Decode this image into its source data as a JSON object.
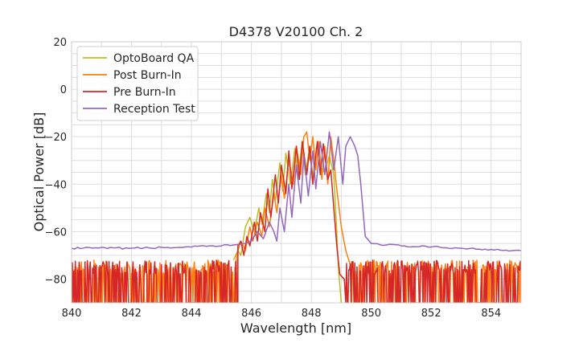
{
  "chart_data": {
    "type": "line",
    "title": "D4378 V20100 Ch. 2",
    "xlabel": "Wavelength [nm]",
    "ylabel": "Optical Power [dB]",
    "xlim": [
      840,
      855
    ],
    "ylim": [
      -90,
      20
    ],
    "xticks": [
      840,
      842,
      844,
      846,
      848,
      850,
      852,
      854
    ],
    "yticks": [
      -80,
      -60,
      -40,
      -20,
      0,
      20
    ],
    "xtick_labels": [
      "840",
      "842",
      "844",
      "846",
      "848",
      "850",
      "852",
      "854"
    ],
    "ytick_labels": [
      "−80",
      "−60",
      "−40",
      "−20",
      "0",
      "20"
    ],
    "grid": true,
    "legend_position": "top-left",
    "noise_floor_note": "series 1-3 dip to -90 dB noise floor outside their emission band",
    "series": [
      {
        "name": "OptoBoard QA",
        "color": "#bcbd22",
        "noisy_floor": false,
        "x": [
          845.4,
          845.55,
          845.65,
          845.75,
          845.8,
          845.95,
          846.1,
          846.25,
          846.35,
          846.5,
          846.6,
          846.7,
          846.8,
          846.95,
          847.05,
          847.15,
          847.3,
          847.45,
          847.55,
          847.7,
          847.8,
          847.95,
          848.05,
          848.2,
          848.3,
          848.45,
          848.6,
          848.75,
          848.85,
          848.9,
          849.0
        ],
        "y": [
          -72,
          -68,
          -70,
          -62,
          -58,
          -54,
          -60,
          -50,
          -57,
          -44,
          -52,
          -38,
          -47,
          -31,
          -43,
          -27,
          -40,
          -25,
          -38,
          -22,
          -36,
          -24,
          -37,
          -22,
          -33,
          -35,
          -28,
          -36,
          -60,
          -75,
          -90
        ]
      },
      {
        "name": "Post Burn-In",
        "color": "#ff7f0e",
        "noisy_floor": true,
        "x": [
          840,
          845.5,
          845.65,
          845.8,
          845.95,
          846.05,
          846.2,
          846.35,
          846.45,
          846.6,
          846.75,
          846.85,
          847.0,
          847.1,
          847.25,
          847.4,
          847.5,
          847.65,
          847.75,
          847.85,
          847.95,
          848.05,
          848.15,
          848.25,
          848.35,
          848.45,
          848.55,
          848.65,
          848.75,
          848.85,
          849.0,
          849.15,
          849.3,
          855
        ],
        "y": [
          -76,
          -70,
          -64,
          -68,
          -58,
          -64,
          -56,
          -62,
          -50,
          -58,
          -44,
          -52,
          -36,
          -46,
          -30,
          -40,
          -24,
          -36,
          -20,
          -18,
          -30,
          -20,
          -34,
          -22,
          -38,
          -24,
          -40,
          -20,
          -30,
          -42,
          -58,
          -68,
          -74,
          -76
        ]
      },
      {
        "name": "Pre Burn-In",
        "color": "#d62728",
        "noisy_floor": true,
        "x": [
          840,
          845.55,
          845.65,
          845.75,
          845.85,
          845.95,
          846.1,
          846.2,
          846.3,
          846.45,
          846.55,
          846.65,
          846.8,
          846.9,
          847.0,
          847.15,
          847.25,
          847.35,
          847.5,
          847.6,
          847.7,
          847.85,
          847.95,
          848.05,
          848.2,
          848.3,
          848.4,
          848.55,
          848.65,
          848.75,
          848.85,
          848.95,
          849.1,
          855
        ],
        "y": [
          -76,
          -66,
          -64,
          -70,
          -62,
          -66,
          -56,
          -64,
          -52,
          -60,
          -42,
          -54,
          -36,
          -48,
          -32,
          -44,
          -26,
          -42,
          -24,
          -38,
          -22,
          -36,
          -24,
          -40,
          -22,
          -36,
          -23,
          -38,
          -34,
          -50,
          -66,
          -78,
          -80,
          -76
        ]
      },
      {
        "name": "Reception Test",
        "color": "#9467bd",
        "noisy_floor": false,
        "x": [
          840,
          842,
          844,
          845.0,
          845.5,
          845.8,
          846.0,
          846.2,
          846.4,
          846.6,
          846.75,
          846.85,
          846.95,
          847.1,
          847.25,
          847.35,
          847.5,
          847.65,
          847.75,
          847.9,
          848.05,
          848.15,
          848.3,
          848.45,
          848.6,
          848.75,
          848.9,
          849.05,
          849.15,
          849.3,
          849.45,
          849.55,
          849.65,
          849.8,
          850.0,
          851.0,
          852.0,
          853.0,
          854.0,
          855.0
        ],
        "y": [
          -67,
          -67,
          -66.5,
          -66,
          -65.5,
          -65,
          -64,
          -60,
          -63,
          -56,
          -60,
          -64,
          -50,
          -60,
          -40,
          -54,
          -32,
          -48,
          -28,
          -45,
          -26,
          -42,
          -22,
          -36,
          -18,
          -34,
          -20,
          -40,
          -24,
          -20,
          -24,
          -28,
          -40,
          -62,
          -65,
          -66,
          -66.5,
          -67,
          -67.5,
          -68
        ]
      }
    ]
  }
}
